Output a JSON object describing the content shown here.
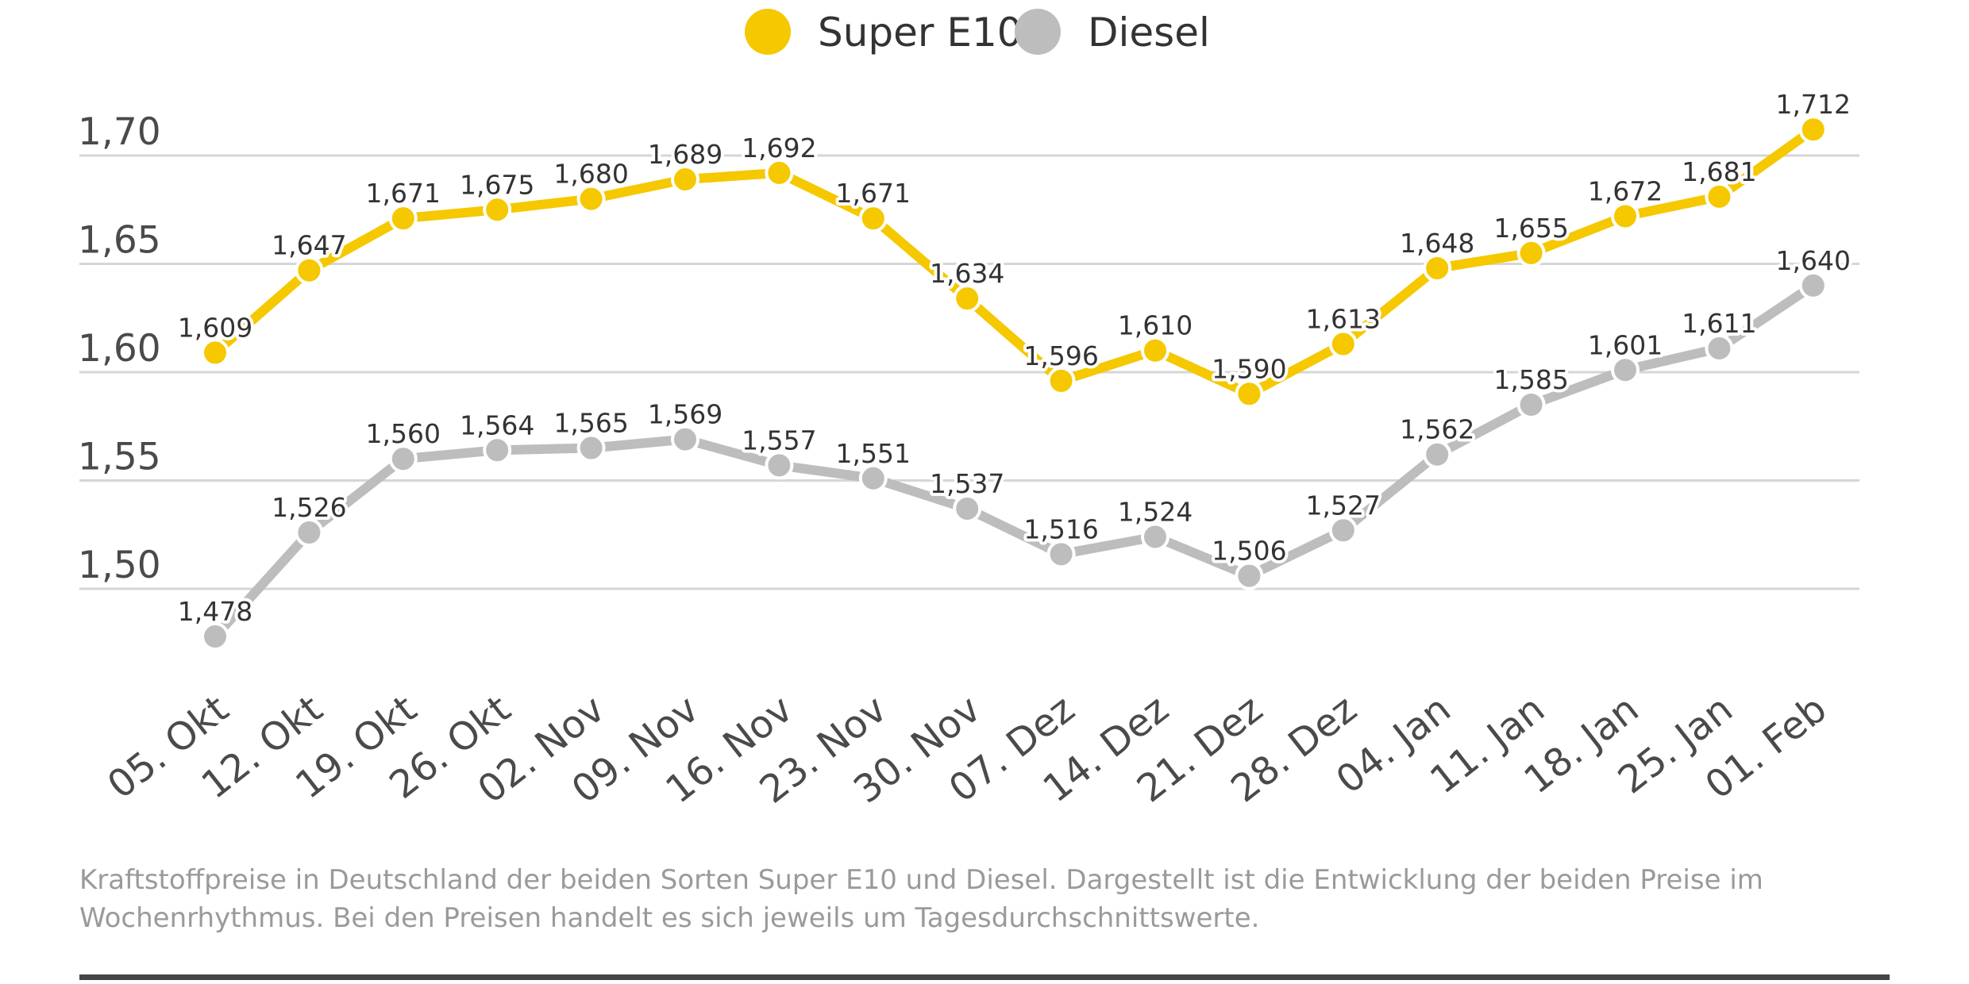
{
  "chart_data": {
    "type": "line",
    "categories": [
      "05. Okt",
      "12. Okt",
      "19. Okt",
      "26. Okt",
      "02. Nov",
      "09. Nov",
      "16. Nov",
      "23. Nov",
      "30. Nov",
      "07. Dez",
      "14. Dez",
      "21. Dez",
      "28. Dez",
      "04. Jan",
      "11. Jan",
      "18. Jan",
      "25. Jan",
      "01. Feb"
    ],
    "series": [
      {
        "name": "Super E10",
        "color": "#F5C800",
        "values": [
          1.609,
          1.647,
          1.671,
          1.675,
          1.68,
          1.689,
          1.692,
          1.671,
          1.634,
          1.596,
          1.61,
          1.59,
          1.613,
          1.648,
          1.655,
          1.672,
          1.681,
          1.712
        ],
        "labels": [
          "1,609",
          "1,647",
          "1,671",
          "1,675",
          "1,680",
          "1,689",
          "1,692",
          "1,671",
          "1,634",
          "1,596",
          "1,610",
          "1,590",
          "1,613",
          "1,648",
          "1,655",
          "1,672",
          "1,681",
          "1,712"
        ]
      },
      {
        "name": "Diesel",
        "color": "#BDBDBD",
        "values": [
          1.478,
          1.526,
          1.56,
          1.564,
          1.565,
          1.569,
          1.557,
          1.551,
          1.537,
          1.516,
          1.524,
          1.506,
          1.527,
          1.562,
          1.585,
          1.601,
          1.611,
          1.64
        ],
        "labels": [
          "1,478",
          "1,526",
          "1,560",
          "1,564",
          "1,565",
          "1,569",
          "1,557",
          "1,551",
          "1,537",
          "1,516",
          "1,524",
          "1,506",
          "1,527",
          "1,562",
          "1,585",
          "1,601",
          "1,611",
          "1,640"
        ]
      }
    ],
    "y_ticks": [
      1.5,
      1.55,
      1.6,
      1.65,
      1.7
    ],
    "y_tick_labels": [
      "1,50",
      "1,55",
      "1,60",
      "1,65",
      "1,70"
    ],
    "ylim": [
      1.478,
      1.712
    ],
    "grid": true,
    "legend_position": "top-center",
    "caption": [
      "Kraftstoffpreise in Deutschland der beiden Sorten Super E10 und Diesel. Dargestellt ist die Entwicklung der beiden Preise im",
      "Wochenrhythmus. Bei den Preisen handelt es sich jeweils um Tagesdurchschnittswerte."
    ]
  },
  "colors": {
    "gridline": "#D6D6D6",
    "footer_rule": "#444444"
  }
}
